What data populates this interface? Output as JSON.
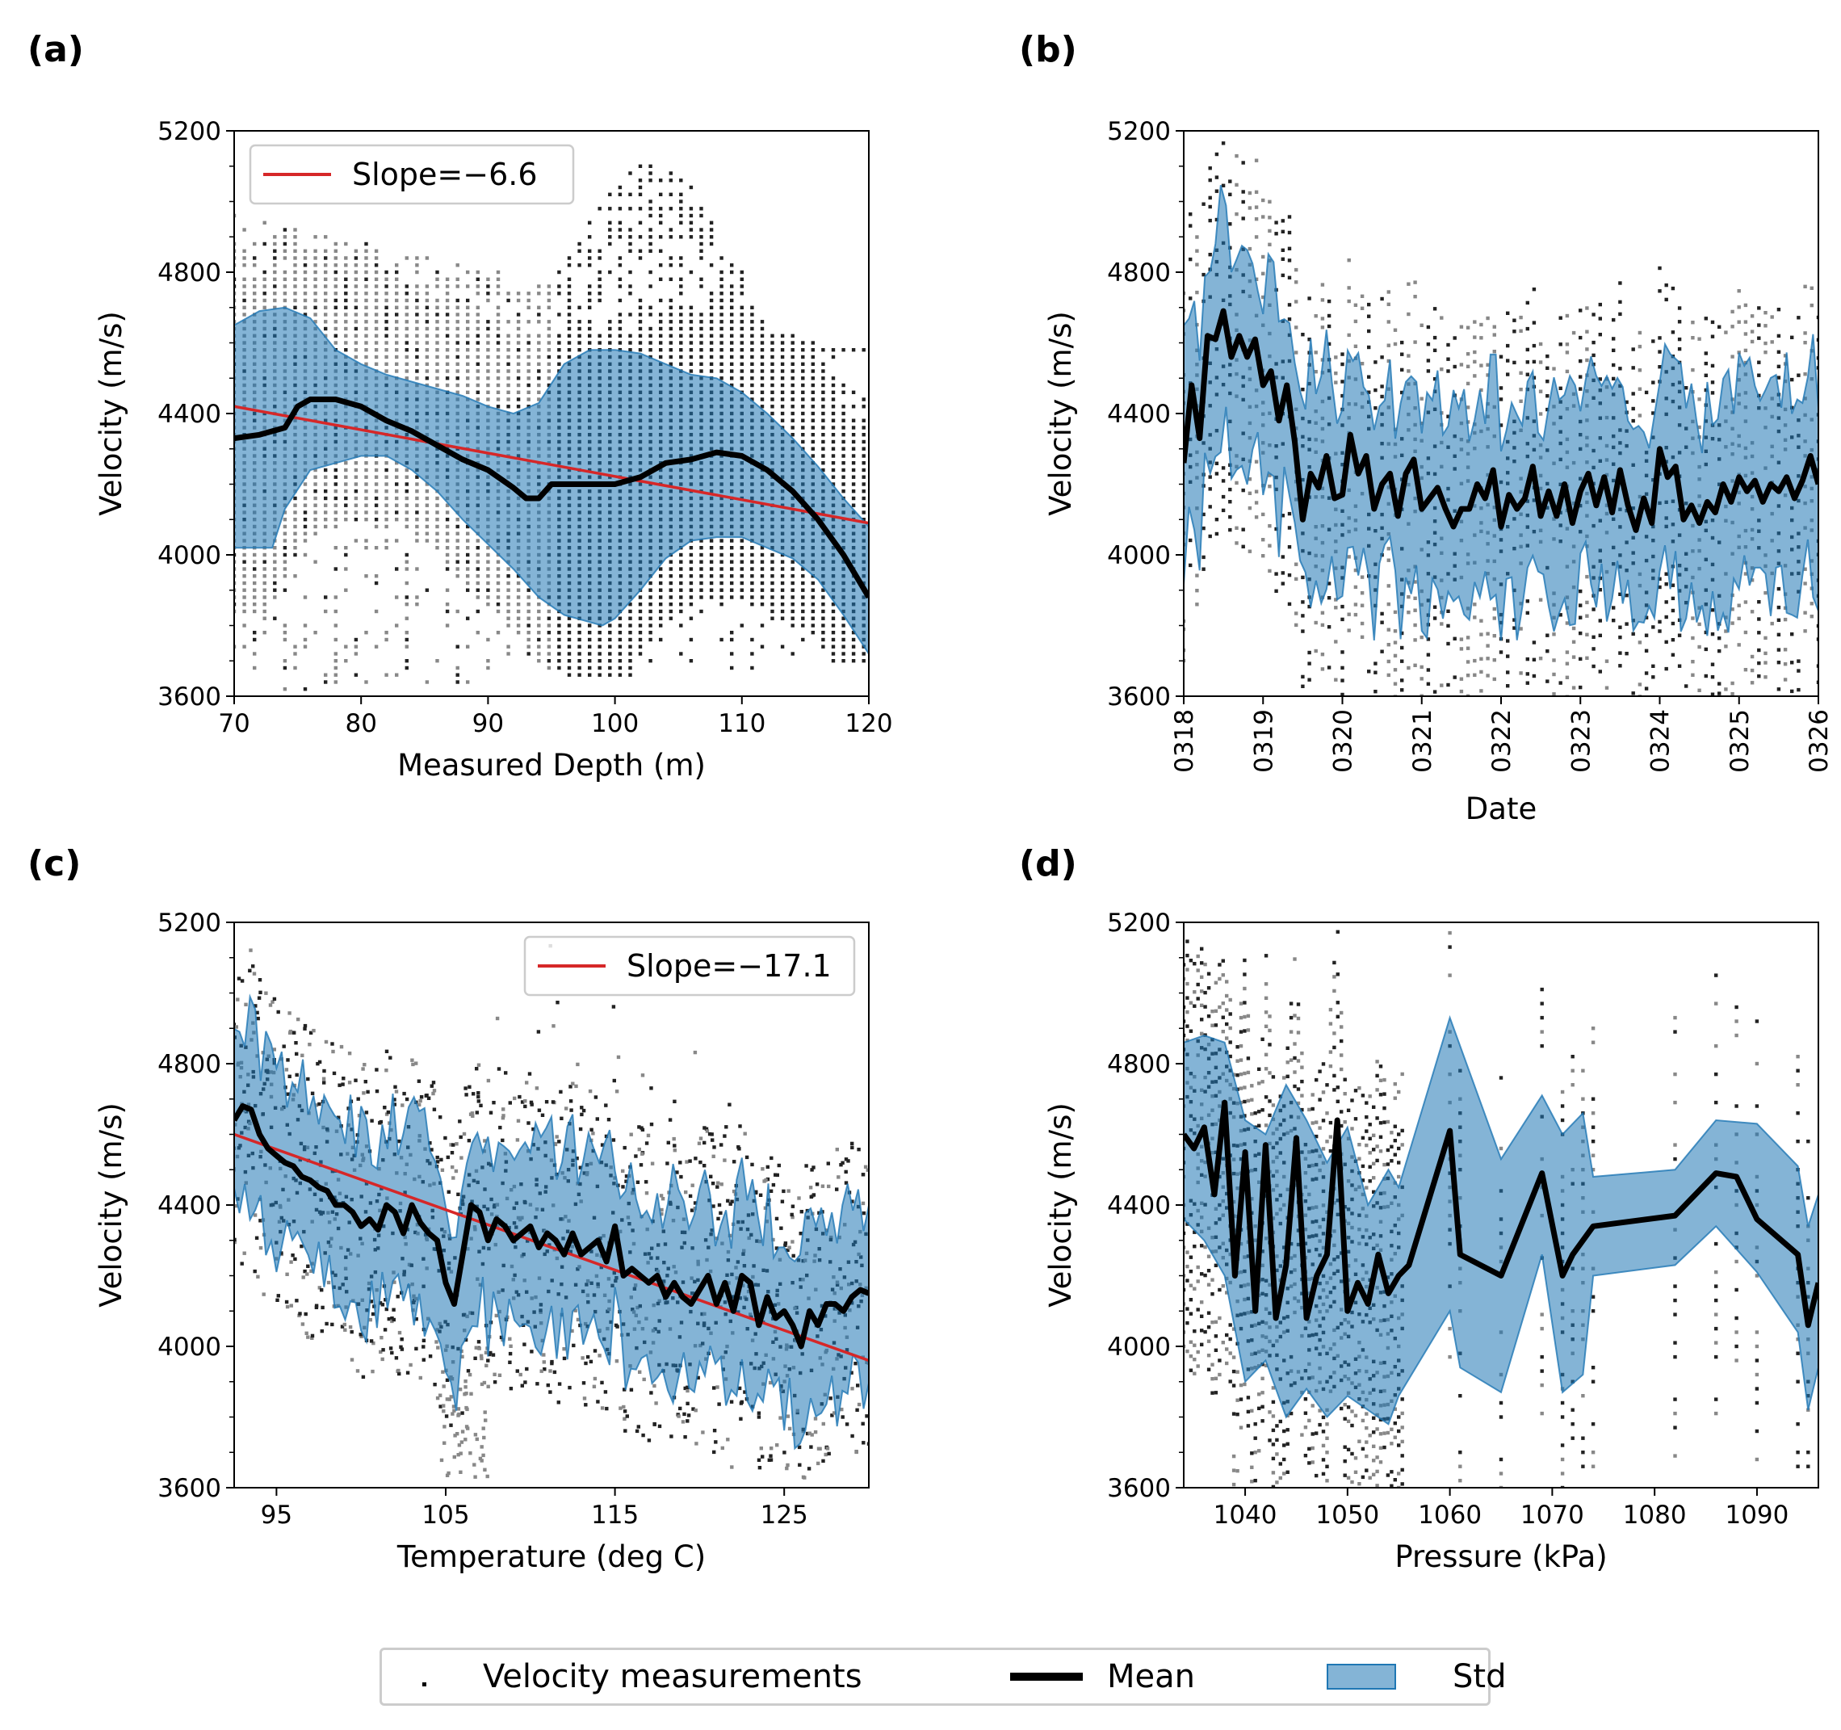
{
  "figure": {
    "panel_labels": [
      "(a)",
      "(b)",
      "(c)",
      "(d)"
    ],
    "legend": {
      "measurements": "Velocity measurements",
      "mean": "Mean",
      "std": "Std"
    },
    "colors": {
      "band": "#1f77b4",
      "mean": "#000000",
      "fit": "#d62728",
      "points_dark": "#222222",
      "points_light": "#888888"
    }
  },
  "chart_data": [
    {
      "type": "line",
      "panel": "(a)",
      "xlabel": "Measured Depth (m)",
      "ylabel": "Velocity (m/s)",
      "xlim": [
        70,
        120
      ],
      "ylim": [
        3600,
        5200
      ],
      "xticks": [
        70,
        80,
        90,
        100,
        110,
        120
      ],
      "xtick_labels": [
        "70",
        "80",
        "90",
        "100",
        "110",
        "120"
      ],
      "yticks": [
        3600,
        4000,
        4400,
        4800,
        5200
      ],
      "ytick_labels": [
        "3600",
        "4000",
        "4400",
        "4800",
        "5200"
      ],
      "legend_label": "Slope=−6.6",
      "fit_line": {
        "x": [
          70,
          120
        ],
        "y": [
          4420,
          4090
        ]
      },
      "mean": {
        "x": [
          70,
          72,
          74,
          75,
          76,
          78,
          80,
          82,
          84,
          86,
          88,
          90,
          92,
          93,
          94,
          95,
          96,
          98,
          100,
          102,
          104,
          106,
          108,
          110,
          112,
          114,
          116,
          118,
          120
        ],
        "y": [
          4330,
          4340,
          4360,
          4420,
          4440,
          4440,
          4420,
          4380,
          4350,
          4310,
          4270,
          4240,
          4190,
          4160,
          4160,
          4200,
          4200,
          4200,
          4200,
          4220,
          4260,
          4270,
          4290,
          4280,
          4240,
          4180,
          4100,
          4000,
          3880
        ]
      },
      "std_upper": {
        "x": [
          70,
          72,
          74,
          76,
          78,
          80,
          82,
          84,
          86,
          88,
          90,
          92,
          94,
          96,
          98,
          100,
          102,
          104,
          106,
          108,
          110,
          112,
          114,
          116,
          118,
          120
        ],
        "y": [
          4650,
          4690,
          4700,
          4670,
          4580,
          4540,
          4510,
          4490,
          4470,
          4450,
          4420,
          4400,
          4430,
          4540,
          4580,
          4580,
          4570,
          4540,
          4510,
          4500,
          4460,
          4400,
          4330,
          4250,
          4160,
          4080
        ]
      },
      "std_lower": {
        "x": [
          70,
          72,
          73,
          74,
          76,
          78,
          80,
          82,
          84,
          86,
          88,
          90,
          92,
          94,
          96,
          98,
          99,
          100,
          102,
          104,
          106,
          108,
          110,
          112,
          114,
          116,
          118,
          120
        ],
        "y": [
          4020,
          4020,
          4020,
          4130,
          4240,
          4260,
          4280,
          4280,
          4240,
          4180,
          4100,
          4030,
          3960,
          3880,
          3830,
          3810,
          3800,
          3820,
          3900,
          3990,
          4040,
          4050,
          4050,
          4020,
          3990,
          3930,
          3830,
          3720
        ]
      },
      "points": {
        "x_start": 70,
        "x_end": 120,
        "x_step": 0.8,
        "v_step": 20,
        "vmin_at_start": 3620,
        "vmax_at_start": 4960,
        "vmin_at_end": 3700,
        "vmax_at_end": 4580
      }
    },
    {
      "type": "line",
      "panel": "(b)",
      "xlabel": "Date",
      "ylabel": "Velocity (m/s)",
      "xlim": [
        0,
        8
      ],
      "ylim": [
        3600,
        5200
      ],
      "xticks": [
        0,
        1,
        2,
        3,
        4,
        5,
        6,
        7,
        8
      ],
      "xtick_labels": [
        "0318",
        "0319",
        "0320",
        "0321",
        "0322",
        "0323",
        "0324",
        "0325",
        "0326"
      ],
      "yticks": [
        3600,
        4000,
        4400,
        4800,
        5200
      ],
      "ytick_labels": [
        "3600",
        "4000",
        "4400",
        "4800",
        "5200"
      ],
      "mean": {
        "x": [
          0,
          0.1,
          0.2,
          0.3,
          0.4,
          0.5,
          0.6,
          0.7,
          0.8,
          0.9,
          1.0,
          1.1,
          1.2,
          1.3,
          1.4,
          1.5,
          1.6,
          1.7,
          1.8,
          1.9,
          2.0,
          2.1,
          2.2,
          2.3,
          2.4,
          2.5,
          2.6,
          2.7,
          2.8,
          2.9,
          3.0,
          3.1,
          3.2,
          3.3,
          3.4,
          3.5,
          3.6,
          3.7,
          3.8,
          3.9,
          4.0,
          4.1,
          4.2,
          4.3,
          4.4,
          4.5,
          4.6,
          4.7,
          4.8,
          4.9,
          5.0,
          5.1,
          5.2,
          5.3,
          5.4,
          5.5,
          5.6,
          5.7,
          5.8,
          5.9,
          6.0,
          6.1,
          6.2,
          6.3,
          6.4,
          6.5,
          6.6,
          6.7,
          6.8,
          6.9,
          7.0,
          7.1,
          7.2,
          7.3,
          7.4,
          7.5,
          7.6,
          7.7,
          7.8,
          7.9,
          8.0
        ],
        "y": [
          4260,
          4480,
          4330,
          4620,
          4610,
          4690,
          4560,
          4620,
          4560,
          4610,
          4480,
          4520,
          4380,
          4480,
          4320,
          4100,
          4230,
          4190,
          4280,
          4160,
          4170,
          4340,
          4230,
          4280,
          4130,
          4200,
          4230,
          4110,
          4230,
          4270,
          4130,
          4160,
          4190,
          4130,
          4080,
          4130,
          4130,
          4200,
          4160,
          4240,
          4080,
          4170,
          4130,
          4160,
          4250,
          4110,
          4180,
          4110,
          4200,
          4090,
          4180,
          4230,
          4140,
          4220,
          4120,
          4240,
          4140,
          4070,
          4160,
          4090,
          4300,
          4220,
          4250,
          4100,
          4140,
          4090,
          4150,
          4120,
          4200,
          4150,
          4220,
          4180,
          4210,
          4150,
          4200,
          4180,
          4220,
          4160,
          4210,
          4280,
          4200
        ]
      },
      "std_center_extra": 240,
      "points": {
        "cols_per_day": 12,
        "v_step": 40
      }
    },
    {
      "type": "line",
      "panel": "(c)",
      "xlabel": "Temperature (deg C)",
      "ylabel": "Velocity (m/s)",
      "xlim": [
        92.5,
        130
      ],
      "ylim": [
        3600,
        5200
      ],
      "xticks": [
        95,
        105,
        115,
        125
      ],
      "xtick_labels": [
        "95",
        "105",
        "115",
        "125"
      ],
      "yticks": [
        3600,
        4000,
        4400,
        4800,
        5200
      ],
      "ytick_labels": [
        "3600",
        "4000",
        "4400",
        "4800",
        "5200"
      ],
      "legend_label": "Slope=−17.1",
      "fit_line": {
        "x": [
          92.5,
          130
        ],
        "y": [
          4600,
          3960
        ]
      },
      "mean": {
        "x": [
          92.5,
          93,
          93.5,
          94,
          94.5,
          95,
          95.5,
          96,
          96.5,
          97,
          97.5,
          98,
          98.5,
          99,
          99.5,
          100,
          100.5,
          101,
          101.5,
          102,
          102.5,
          103,
          103.5,
          104,
          104.5,
          105,
          105.5,
          106,
          106.5,
          107,
          107.5,
          108,
          108.5,
          109,
          109.5,
          110,
          110.5,
          111,
          111.5,
          112,
          112.5,
          113,
          113.5,
          114,
          114.5,
          115,
          115.5,
          116,
          116.5,
          117,
          117.5,
          118,
          118.5,
          119,
          119.5,
          120,
          120.5,
          121,
          121.5,
          122,
          122.5,
          123,
          123.5,
          124,
          124.5,
          125,
          125.5,
          126,
          126.5,
          127,
          127.5,
          128,
          128.5,
          129,
          129.5,
          130
        ],
        "y": [
          4640,
          4680,
          4670,
          4600,
          4560,
          4540,
          4520,
          4510,
          4480,
          4470,
          4450,
          4440,
          4400,
          4400,
          4380,
          4340,
          4360,
          4330,
          4400,
          4380,
          4320,
          4400,
          4350,
          4320,
          4300,
          4180,
          4120,
          4260,
          4400,
          4380,
          4300,
          4360,
          4340,
          4300,
          4320,
          4340,
          4280,
          4320,
          4300,
          4260,
          4320,
          4260,
          4280,
          4300,
          4240,
          4340,
          4200,
          4220,
          4200,
          4180,
          4200,
          4140,
          4180,
          4140,
          4120,
          4160,
          4200,
          4120,
          4180,
          4100,
          4200,
          4180,
          4060,
          4140,
          4080,
          4100,
          4060,
          4000,
          4100,
          4060,
          4120,
          4120,
          4100,
          4140,
          4160,
          4150
        ]
      },
      "std_half_width": 210,
      "points": {
        "x_step": 0.22,
        "v_step": 20
      }
    },
    {
      "type": "line",
      "panel": "(d)",
      "xlabel": "Pressure (kPa)",
      "ylabel": "Velocity (m/s)",
      "xlim": [
        1034,
        1096
      ],
      "ylim": [
        3600,
        5200
      ],
      "xticks": [
        1040,
        1050,
        1060,
        1070,
        1080,
        1090
      ],
      "xtick_labels": [
        "1040",
        "1050",
        "1060",
        "1070",
        "1080",
        "1090"
      ],
      "yticks": [
        3600,
        4000,
        4400,
        4800,
        5200
      ],
      "ytick_labels": [
        "3600",
        "4000",
        "4400",
        "4800",
        "5200"
      ],
      "mean": {
        "x": [
          1034,
          1035,
          1036,
          1037,
          1038,
          1039,
          1040,
          1041,
          1042,
          1043,
          1044,
          1045,
          1046,
          1047,
          1048,
          1049,
          1050,
          1051,
          1052,
          1053,
          1054,
          1055,
          1056,
          1060,
          1061,
          1065,
          1069,
          1071,
          1072,
          1073,
          1074,
          1082,
          1086,
          1088,
          1090,
          1094,
          1095,
          1096
        ],
        "y": [
          4600,
          4560,
          4620,
          4430,
          4690,
          4200,
          4550,
          4100,
          4570,
          4080,
          4230,
          4590,
          4080,
          4200,
          4260,
          4640,
          4100,
          4180,
          4120,
          4260,
          4150,
          4200,
          4230,
          4610,
          4260,
          4200,
          4490,
          4200,
          4260,
          4300,
          4340,
          4370,
          4490,
          4480,
          4360,
          4260,
          4060,
          4180
        ]
      },
      "std_upper": {
        "x": [
          1034,
          1036,
          1038,
          1040,
          1042,
          1044,
          1046,
          1048,
          1050,
          1052,
          1054,
          1055,
          1060,
          1065,
          1069,
          1071,
          1073,
          1074,
          1082,
          1086,
          1090,
          1094,
          1095,
          1096
        ],
        "y": [
          4860,
          4880,
          4860,
          4640,
          4600,
          4740,
          4640,
          4520,
          4620,
          4400,
          4500,
          4450,
          4930,
          4530,
          4710,
          4600,
          4660,
          4480,
          4500,
          4640,
          4630,
          4510,
          4340,
          4430
        ]
      },
      "std_lower": {
        "x": [
          1034,
          1036,
          1038,
          1040,
          1042,
          1044,
          1046,
          1048,
          1050,
          1052,
          1054,
          1055,
          1060,
          1061,
          1065,
          1069,
          1071,
          1073,
          1074,
          1082,
          1086,
          1090,
          1094,
          1095,
          1096
        ],
        "y": [
          4360,
          4300,
          4200,
          3900,
          3960,
          3800,
          3880,
          3800,
          3860,
          3820,
          3780,
          3860,
          4100,
          3940,
          3870,
          4260,
          3870,
          3920,
          4200,
          4230,
          4340,
          4210,
          4040,
          3820,
          3940
        ]
      },
      "points": {
        "v_step": 40
      }
    }
  ]
}
